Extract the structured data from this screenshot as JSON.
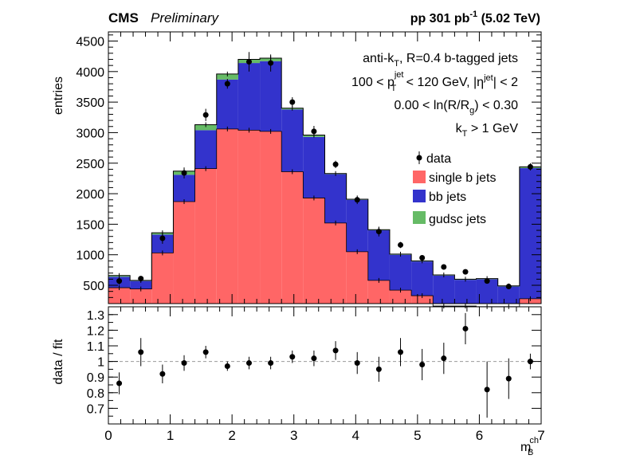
{
  "header": {
    "experiment": "CMS",
    "status": "Preliminary",
    "lumi_prefix": "pp 301 pb",
    "lumi_sup": "-1",
    "lumi_suffix": " (5.02 TeV)"
  },
  "annotations": {
    "line1_a": "anti-k",
    "line1_sub": "T",
    "line1_b": ", R=0.4 b-tagged jets",
    "line2_a": "100 < p",
    "line2_sup": "jet",
    "line2_sub": "T",
    "line2_b": " < 120 GeV, |η",
    "line2_sup2": "jet",
    "line2_c": "| < 2",
    "line3_a": "0.00 < ln(R/R",
    "line3_sub": "g",
    "line3_b": ") < 0.30",
    "line4_a": "k",
    "line4_sub": "T",
    "line4_b": " > 1 GeV"
  },
  "legend": {
    "data": "data",
    "single": "single b jets",
    "bb": "bb jets",
    "gudsc": "gudsc jets"
  },
  "axes": {
    "top_ylabel": "entries",
    "bottom_ylabel": "data / fit",
    "xlabel_main": "m",
    "xlabel_sup": "ch",
    "xlabel_sub": "B"
  },
  "colors": {
    "single": "#ff6666",
    "bb": "#3333cc",
    "gudsc": "#66bb66",
    "data": "#000000"
  },
  "chart_data": [
    {
      "type": "stacked-histogram",
      "xlim": [
        0,
        7
      ],
      "ylim": [
        200,
        4650
      ],
      "yticks": [
        500,
        1000,
        1500,
        2000,
        2500,
        3000,
        3500,
        4000,
        4500
      ],
      "bin_edges": [
        0,
        0.35,
        0.7,
        1.05,
        1.4,
        1.75,
        2.1,
        2.45,
        2.8,
        3.15,
        3.5,
        3.85,
        4.2,
        4.55,
        4.9,
        5.25,
        5.6,
        5.95,
        6.3,
        6.65,
        7.0
      ],
      "series": [
        {
          "name": "single b jets",
          "values": [
            460,
            440,
            1030,
            1870,
            2410,
            3060,
            3040,
            3020,
            2360,
            1930,
            1520,
            1050,
            580,
            420,
            330,
            160,
            160,
            150,
            150,
            280
          ]
        },
        {
          "name": "bb jets",
          "values": [
            180,
            130,
            300,
            440,
            630,
            810,
            1100,
            1150,
            1020,
            1000,
            800,
            850,
            820,
            580,
            560,
            500,
            430,
            450,
            330,
            2140
          ]
        },
        {
          "name": "gudsc jets",
          "values": [
            20,
            10,
            30,
            60,
            90,
            90,
            60,
            50,
            20,
            30,
            10,
            10,
            10,
            10,
            10,
            10,
            10,
            10,
            10,
            20
          ]
        }
      ],
      "data": {
        "name": "data",
        "x": [
          0.175,
          0.525,
          0.875,
          1.225,
          1.575,
          1.925,
          2.275,
          2.625,
          2.975,
          3.325,
          3.675,
          4.025,
          4.375,
          4.725,
          5.075,
          5.425,
          5.775,
          6.125,
          6.475,
          6.825
        ],
        "y": [
          570,
          610,
          1270,
          2340,
          3290,
          3800,
          4160,
          4140,
          3500,
          3020,
          2480,
          1900,
          1380,
          1160,
          950,
          800,
          720,
          570,
          480,
          2440
        ],
        "err": [
          60,
          40,
          90,
          90,
          100,
          80,
          160,
          140,
          80,
          90,
          60,
          70,
          80,
          50,
          40,
          30,
          30,
          30,
          40,
          60
        ]
      }
    },
    {
      "type": "scatter",
      "xlim": [
        0,
        7
      ],
      "ylim": [
        0.6,
        1.35
      ],
      "yticks": [
        0.7,
        0.8,
        0.9,
        1,
        1.1,
        1.2,
        1.3
      ],
      "xticks": [
        0,
        1,
        2,
        3,
        4,
        5,
        6,
        7
      ],
      "reference_line": 1,
      "x": [
        0.175,
        0.525,
        0.875,
        1.225,
        1.575,
        1.925,
        2.275,
        2.625,
        2.975,
        3.325,
        3.675,
        4.025,
        4.375,
        4.725,
        5.075,
        5.425,
        5.775,
        6.125,
        6.475,
        6.825
      ],
      "y": [
        0.86,
        1.06,
        0.92,
        0.99,
        1.06,
        0.97,
        0.99,
        0.99,
        1.03,
        1.02,
        1.07,
        0.99,
        0.95,
        1.06,
        0.98,
        1.02,
        1.21,
        0.82,
        0.89,
        1.0
      ],
      "err": [
        0.07,
        0.09,
        0.06,
        0.05,
        0.04,
        0.03,
        0.04,
        0.04,
        0.04,
        0.05,
        0.06,
        0.07,
        0.08,
        0.09,
        0.1,
        0.1,
        0.1,
        0.18,
        0.13,
        0.05
      ]
    }
  ]
}
